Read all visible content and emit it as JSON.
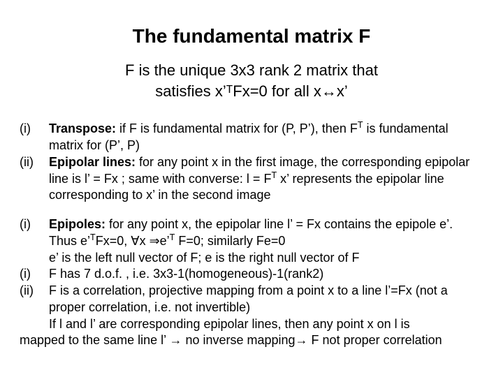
{
  "colors": {
    "bg": "#ffffff",
    "text": "#000000"
  },
  "fonts": {
    "family": "Arial",
    "title_pt": 28,
    "subtitle_pt": 22,
    "body_pt": 18
  },
  "title": "The fundamental matrix F",
  "subtitle_line1": "F is the unique 3x3 rank 2 matrix that",
  "subtitle_line2": "satisfies x’ᵀFx=0 for all x↔x’",
  "group1": {
    "i_marker": "(i)",
    "i_label": "Transpose:",
    "i_text_a": " if F is fundamental matrix for (P, P’), then F",
    "i_sup": "T",
    "i_text_b": " is fundamental matrix for (P’, P)",
    "ii_marker": "(ii)",
    "ii_label": "Epipolar lines:",
    "ii_text_a": " for any point x in the first image, the corresponding epipolar line is l’ = Fx ; same with converse: l = F",
    "ii_sup": "T",
    "ii_text_b": " x’ represents the epipolar line corresponding to x’ in the second image"
  },
  "group2": {
    "i_marker": "(i)",
    "i_label": "Epipoles:",
    "i_text_a": " for any point x, the epipolar line l’ = Fx contains the epipole e’. Thus e’",
    "i_sup1": "T",
    "i_text_b": "Fx=0, ∀x ⇒e’",
    "i_sup2": "T",
    "i_text_c": " F=0;  similarly Fe=0",
    "i_line3": "e’ is the left null vector of F;  e is the right null vector of F",
    "ii_marker": "(i)",
    "ii_text": "F has 7 d.o.f. , i.e. 3x3-1(homogeneous)-1(rank2)",
    "iii_marker": "(ii)",
    "iii_text": "F is a correlation, projective mapping from a point x to a line l’=Fx (not a proper correlation, i.e. not invertible)",
    "iii_line2": "If l and l’ are corresponding epipolar lines, then any point x on l is"
  },
  "final_line": "mapped to the same line l’ → no inverse mapping→ F not proper correlation"
}
